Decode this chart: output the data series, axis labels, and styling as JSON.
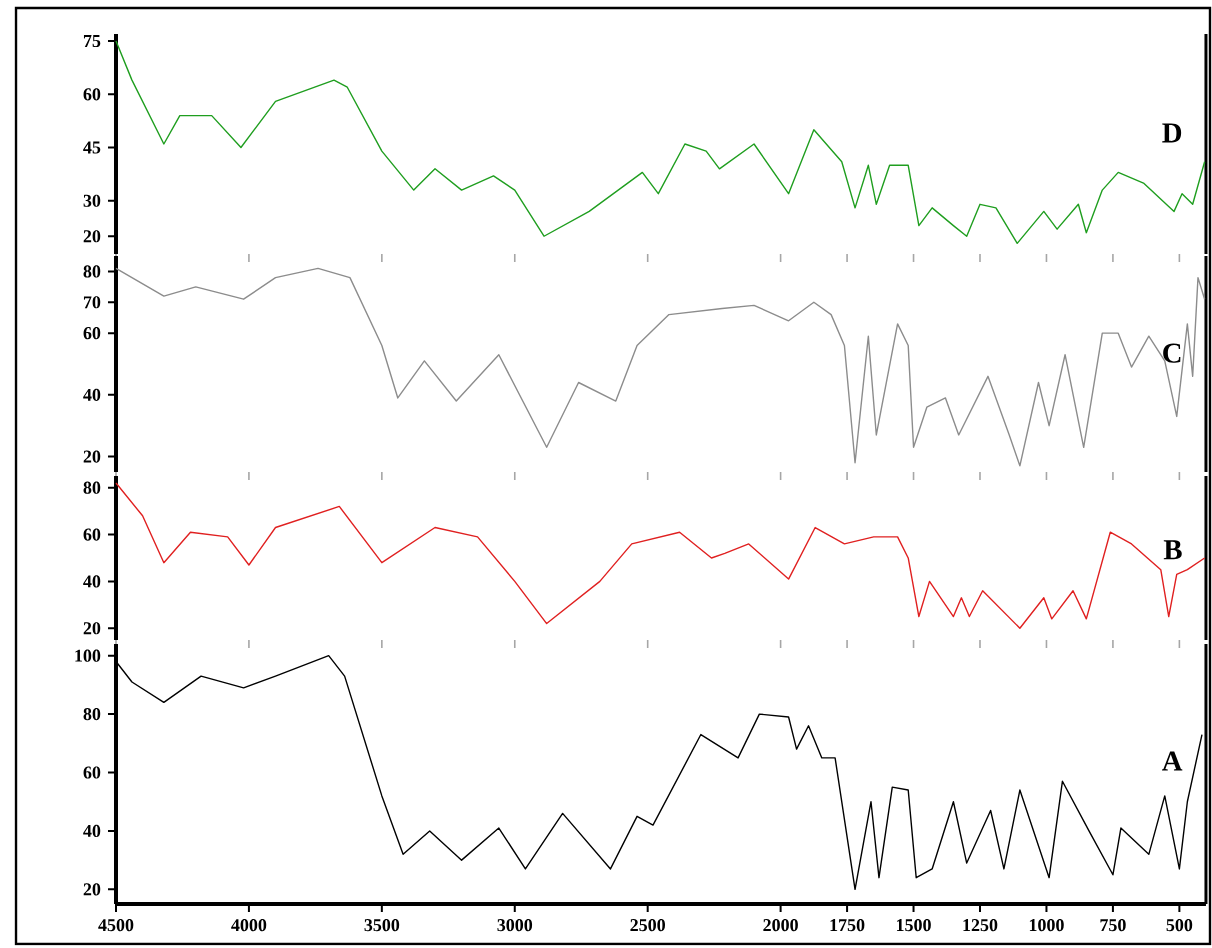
{
  "chart_data": [
    {
      "type": "line",
      "xlim": [
        4500,
        400
      ],
      "ylim": [
        15,
        77
      ],
      "xticks": [
        4500,
        4000,
        3500,
        3000,
        2500,
        2000,
        1750,
        1500,
        1250,
        1000,
        750,
        500
      ],
      "yticks": [
        20,
        30,
        45,
        60,
        75
      ],
      "tick_labels": "y",
      "annotations": [
        "D"
      ],
      "series": [
        {
          "color": "#1f9e1f",
          "x": [
            4500,
            4440,
            4320,
            4260,
            4140,
            4030,
            3900,
            3680,
            3630,
            3500,
            3380,
            3300,
            3200,
            3080,
            3000,
            2890,
            2720,
            2520,
            2460,
            2360,
            2280,
            2230,
            2100,
            1970,
            1875,
            1770,
            1720,
            1670,
            1640,
            1590,
            1520,
            1480,
            1430,
            1350,
            1300,
            1250,
            1190,
            1110,
            1010,
            960,
            880,
            850,
            790,
            730,
            635,
            520,
            490,
            450,
            405
          ],
          "values": [
            75,
            64,
            46,
            54,
            54,
            45,
            58,
            64,
            62,
            44,
            33,
            39,
            33,
            37,
            33,
            20,
            27,
            38,
            32,
            46,
            44,
            39,
            46,
            32,
            50,
            41,
            28,
            40,
            29,
            40,
            40,
            23,
            28,
            23,
            20,
            29,
            28,
            18,
            27,
            22,
            29,
            21,
            33,
            38,
            35,
            27,
            32,
            29,
            41
          ]
        }
      ]
    },
    {
      "type": "line",
      "xlim": [
        4500,
        400
      ],
      "ylim": [
        15,
        85
      ],
      "xticks": [
        4500,
        4000,
        3500,
        3000,
        2500,
        2000,
        1750,
        1500,
        1250,
        1000,
        750,
        500
      ],
      "yticks": [
        20,
        40,
        60,
        70,
        80
      ],
      "tick_labels": "y",
      "annotations": [
        "C"
      ],
      "series": [
        {
          "color": "#8c8c8c",
          "x": [
            4500,
            4320,
            4200,
            4020,
            3900,
            3740,
            3620,
            3500,
            3440,
            3340,
            3220,
            3060,
            2880,
            2760,
            2620,
            2540,
            2420,
            2220,
            2100,
            1970,
            1875,
            1810,
            1760,
            1720,
            1670,
            1640,
            1560,
            1520,
            1500,
            1450,
            1380,
            1330,
            1220,
            1140,
            1100,
            1030,
            990,
            930,
            860,
            790,
            730,
            680,
            615,
            555,
            510,
            470,
            450,
            430,
            405
          ],
          "values": [
            81,
            72,
            75,
            71,
            78,
            81,
            78,
            56,
            39,
            51,
            38,
            53,
            23,
            44,
            38,
            56,
            66,
            68,
            69,
            64,
            70,
            66,
            56,
            18,
            59,
            27,
            63,
            56,
            23,
            36,
            39,
            27,
            46,
            27,
            17,
            44,
            30,
            53,
            23,
            60,
            60,
            49,
            59,
            51,
            33,
            63,
            46,
            78,
            71
          ]
        }
      ]
    },
    {
      "type": "line",
      "xlim": [
        4500,
        400
      ],
      "ylim": [
        15,
        85
      ],
      "xticks": [
        4500,
        4000,
        3500,
        3000,
        2500,
        2000,
        1750,
        1500,
        1250,
        1000,
        750,
        500
      ],
      "yticks": [
        20,
        40,
        60,
        80
      ],
      "tick_labels": "y",
      "annotations": [
        "B"
      ],
      "series": [
        {
          "color": "#e02020",
          "x": [
            4500,
            4400,
            4320,
            4220,
            4080,
            4000,
            3900,
            3660,
            3500,
            3300,
            3140,
            3000,
            2880,
            2680,
            2560,
            2380,
            2260,
            2210,
            2120,
            1970,
            1870,
            1760,
            1650,
            1560,
            1520,
            1480,
            1440,
            1350,
            1320,
            1290,
            1240,
            1100,
            1010,
            980,
            900,
            850,
            760,
            680,
            570,
            540,
            510,
            470,
            405
          ],
          "values": [
            82,
            68,
            48,
            61,
            59,
            47,
            63,
            72,
            48,
            63,
            59,
            40,
            22,
            40,
            56,
            61,
            50,
            52,
            56,
            41,
            63,
            56,
            59,
            59,
            50,
            25,
            40,
            25,
            33,
            25,
            36,
            20,
            33,
            24,
            36,
            24,
            61,
            56,
            45,
            25,
            43,
            45,
            50
          ]
        }
      ]
    },
    {
      "type": "line",
      "xlim": [
        4500,
        400
      ],
      "ylim": [
        15,
        104
      ],
      "xticks": [
        4500,
        4000,
        3500,
        3000,
        2500,
        2000,
        1750,
        1500,
        1250,
        1000,
        750,
        500
      ],
      "yticks": [
        20,
        40,
        60,
        80,
        100
      ],
      "annotations": [
        "A"
      ],
      "series": [
        {
          "color": "#000000",
          "x": [
            4500,
            4440,
            4320,
            4180,
            4020,
            3900,
            3700,
            3640,
            3500,
            3420,
            3320,
            3200,
            3060,
            2960,
            2820,
            2640,
            2540,
            2480,
            2300,
            2160,
            2080,
            1970,
            1940,
            1895,
            1845,
            1795,
            1720,
            1660,
            1630,
            1580,
            1520,
            1490,
            1430,
            1350,
            1300,
            1210,
            1160,
            1100,
            990,
            940,
            840,
            750,
            720,
            615,
            555,
            500,
            470,
            415
          ],
          "values": [
            98,
            91,
            84,
            93,
            89,
            93,
            100,
            93,
            52,
            32,
            40,
            30,
            41,
            27,
            46,
            27,
            45,
            42,
            73,
            65,
            80,
            79,
            68,
            76,
            65,
            65,
            20,
            50,
            24,
            55,
            54,
            24,
            27,
            50,
            29,
            47,
            27,
            54,
            24,
            57,
            40,
            25,
            41,
            32,
            52,
            27,
            50,
            73
          ]
        }
      ]
    }
  ]
}
